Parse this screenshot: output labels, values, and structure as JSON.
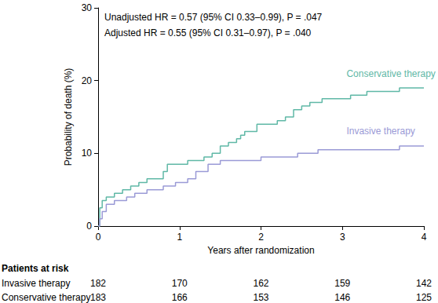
{
  "chart_data": {
    "type": "line",
    "x_label": "Years after randomization",
    "y_label": "Probability of death (%)",
    "xlim": [
      0,
      4
    ],
    "xticks": [
      0,
      1,
      2,
      3,
      4
    ],
    "ylim": [
      0,
      30
    ],
    "yticks": [
      0,
      10,
      20,
      30
    ],
    "grid": false,
    "line_style": "step",
    "annotations": [
      "Unadjusted HR = 0.57 (95% CI 0.33–0.99), P = .047",
      "Adjusted HR = 0.55 (95% CI 0.31–0.97), P = .040"
    ],
    "series": [
      {
        "name": "Conservative therapy",
        "color": "#5fb8a6",
        "x": [
          0,
          0.02,
          0.05,
          0.1,
          0.2,
          0.3,
          0.4,
          0.5,
          0.6,
          0.8,
          0.85,
          1.1,
          1.3,
          1.4,
          1.5,
          1.6,
          1.7,
          1.75,
          1.8,
          1.95,
          2.2,
          2.3,
          2.4,
          2.5,
          2.6,
          2.75,
          3.1,
          3.3,
          3.7,
          4.0
        ],
        "values": [
          0,
          2.5,
          3.5,
          4,
          4.5,
          5,
          5.5,
          6,
          6.5,
          7.5,
          8.5,
          9,
          9.5,
          10,
          11,
          11.5,
          12,
          12.5,
          13,
          14,
          14.5,
          15,
          16,
          16.5,
          17,
          17.5,
          18,
          18.5,
          19,
          19
        ]
      },
      {
        "name": "Invasive therapy",
        "color": "#9a9ad6",
        "x": [
          0,
          0.02,
          0.05,
          0.1,
          0.2,
          0.35,
          0.45,
          0.6,
          0.8,
          0.95,
          1.1,
          1.2,
          1.35,
          1.5,
          2.0,
          2.45,
          2.7,
          3.7,
          4.0
        ],
        "values": [
          0,
          1,
          2,
          3,
          3.5,
          4,
          4.5,
          5,
          5.5,
          6,
          6.5,
          7.5,
          8.5,
          9,
          9.5,
          10,
          10.5,
          11,
          11
        ]
      }
    ],
    "risk_table": {
      "title": "Patients at risk",
      "rows": [
        {
          "name": "Invasive therapy",
          "values": [
            182,
            170,
            162,
            159,
            142
          ]
        },
        {
          "name": "Conservative therapy",
          "values": [
            183,
            166,
            153,
            146,
            125
          ]
        }
      ]
    }
  }
}
